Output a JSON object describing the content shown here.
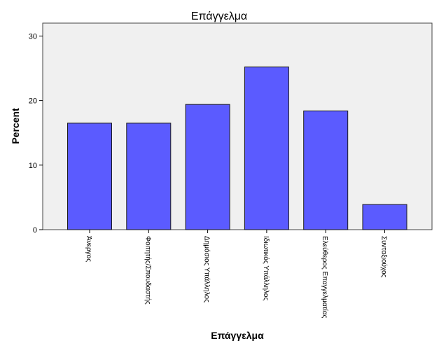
{
  "chart_data": {
    "type": "bar",
    "title": "Επάγγελμα",
    "xlabel": "Επάγγελμα",
    "ylabel": "Percent",
    "categories": [
      "Άνεργος",
      "Φοιτητής/Σπουδαστής",
      "Δημόσιος Υπάλληλος",
      "Ιδιωτικός Υπάλληλος",
      "Ελεύθερος Επαγγελματίας",
      "Συνταξιούχος"
    ],
    "values": [
      16.5,
      16.5,
      19.4,
      25.2,
      18.4,
      3.9
    ],
    "ylim": [
      0,
      32
    ],
    "yticks": [
      "0",
      "10",
      "20",
      "30"
    ],
    "grid": false,
    "colors": {
      "bar_fill": "#5b5bff",
      "bar_stroke": "#1a1a1a",
      "plot_background": "#f0f0f0",
      "plot_border": "#444444"
    }
  }
}
